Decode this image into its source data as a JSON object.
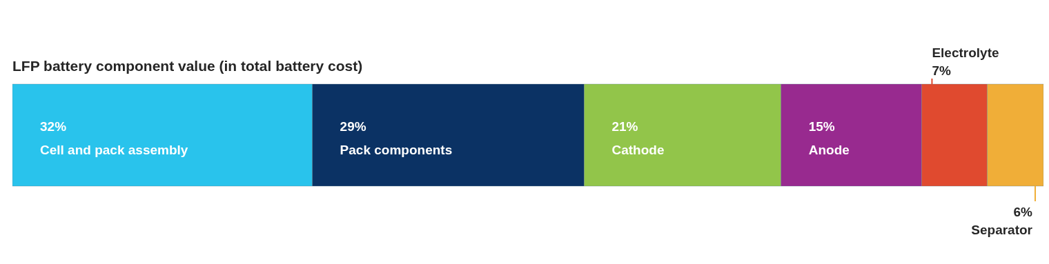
{
  "chart_data": {
    "type": "bar",
    "title": "LFP battery component value (in total battery cost)",
    "orientation": "horizontal",
    "stacked": true,
    "legend": false,
    "categories": [
      null
    ],
    "series": [
      {
        "name": "Cell and pack assembly",
        "color": "#29c3ec",
        "values": [
          32
        ],
        "value_labels": [
          "32%"
        ]
      },
      {
        "name": "Pack components",
        "color": "#0b3264",
        "values": [
          29
        ],
        "value_labels": [
          "29%"
        ]
      },
      {
        "name": "Cathode",
        "color": "#92c54a",
        "values": [
          21
        ],
        "value_labels": [
          "21%"
        ]
      },
      {
        "name": "Anode",
        "color": "#982a8f",
        "values": [
          15
        ],
        "value_labels": [
          "15%"
        ]
      },
      {
        "name": "Electrolyte",
        "color": "#e04a2f",
        "values": [
          7
        ],
        "value_labels": [
          "7%"
        ]
      },
      {
        "name": "Separator",
        "color": "#f0ae38",
        "values": [
          6
        ],
        "value_labels": [
          "6%"
        ]
      }
    ]
  }
}
